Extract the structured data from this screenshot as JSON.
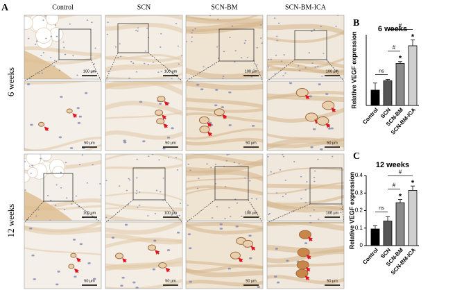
{
  "panel_labels": [
    "A",
    "B",
    "C"
  ],
  "panel_a": {
    "columns": [
      "Control",
      "SCN",
      "SCN-BM",
      "SCN-BM-ICA"
    ],
    "rows": [
      "6 weeks",
      "12 weeks"
    ],
    "scale_labels": [
      "100 μm",
      "50 μm"
    ]
  },
  "chart_data": [
    {
      "type": "bar",
      "title": "6 weeks",
      "y_label": "Relative VEGF expression",
      "categories": [
        "Control",
        "SCN",
        "SCN-BM",
        "SCN-BM-ICA"
      ],
      "values": [
        0.065,
        0.105,
        0.178,
        0.253
      ],
      "errors": [
        0.03,
        0.005,
        0.008,
        0.025
      ],
      "colors": [
        "#000000",
        "#555555",
        "#8a8a8a",
        "#cfcfcf"
      ],
      "ylim": [
        0,
        0.3
      ],
      "comparisons": [
        {
          "label": "ns",
          "between": [
            "Control",
            "SCN"
          ]
        },
        {
          "label": "#",
          "between": [
            "SCN",
            "SCN-BM"
          ]
        },
        {
          "label": "#",
          "between": [
            "SCN",
            "SCN-BM-ICA"
          ]
        }
      ],
      "markers": [
        {
          "label": "*",
          "category": "SCN-BM"
        },
        {
          "label": "*",
          "category": "SCN-BM-ICA"
        }
      ]
    },
    {
      "type": "bar",
      "title": "12 weeks",
      "y_label": "Relative VEGF expression",
      "categories": [
        "Control",
        "SCN",
        "SCN-BM",
        "SCN-BM-ICA"
      ],
      "values": [
        0.095,
        0.14,
        0.245,
        0.315
      ],
      "errors": [
        0.018,
        0.025,
        0.018,
        0.025
      ],
      "colors": [
        "#000000",
        "#555555",
        "#8a8a8a",
        "#cfcfcf"
      ],
      "ylim": [
        0,
        0.4
      ],
      "yticks": [
        0.0,
        0.1,
        0.2,
        0.3,
        0.4
      ],
      "comparisons": [
        {
          "label": "ns",
          "between": [
            "Control",
            "SCN"
          ]
        },
        {
          "label": "#",
          "between": [
            "SCN",
            "SCN-BM"
          ]
        },
        {
          "label": "#",
          "between": [
            "SCN",
            "SCN-BM-ICA"
          ]
        }
      ],
      "markers": [
        {
          "label": "*",
          "category": "SCN-BM"
        },
        {
          "label": "*",
          "category": "SCN-BM-ICA"
        }
      ]
    }
  ]
}
